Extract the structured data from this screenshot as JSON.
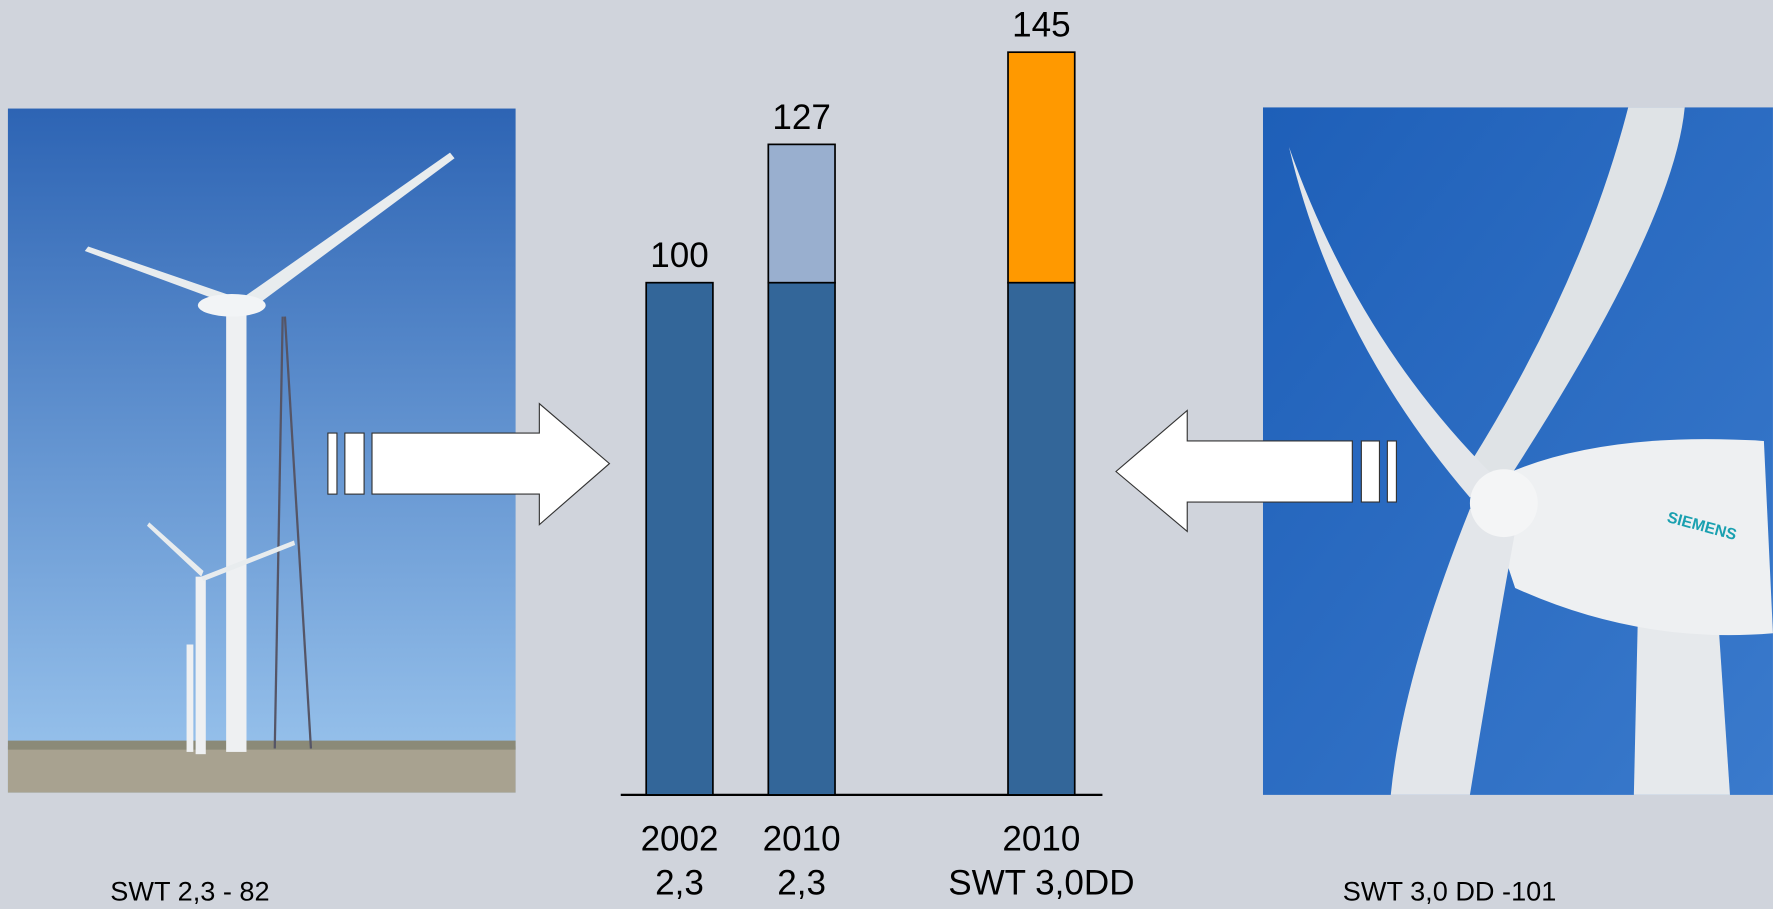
{
  "chart_data": {
    "type": "stacked-bar",
    "categories": [
      "2002",
      "2010",
      "2010"
    ],
    "category_sublabels": [
      "2,3",
      "2,3",
      "SWT 3,0DD"
    ],
    "series": [
      {
        "color": "#336699",
        "values": [
          100,
          100,
          100
        ]
      },
      {
        "color": "#99afcf",
        "values": [
          null,
          27,
          null
        ]
      },
      {
        "color": "#ff9900",
        "values": [
          null,
          null,
          45
        ]
      }
    ],
    "totals": [
      100,
      127,
      145
    ]
  },
  "captions": {
    "left": "SWT 2,3 - 82",
    "right": "SWT 3,0 DD -101"
  }
}
